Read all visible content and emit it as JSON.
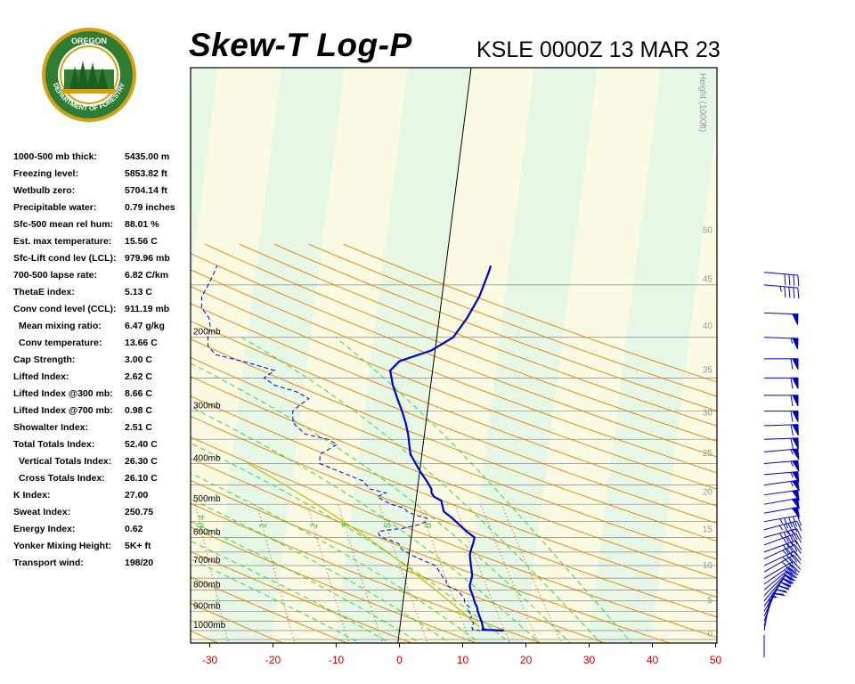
{
  "header": {
    "title": "Skew-T Log-P",
    "station_time": "KSLE 0000Z 13 MAR 23"
  },
  "logo": {
    "top_text": "OREGON",
    "ring_text": "DEPARTMENT OF FORESTRY",
    "colors": {
      "ring": "#2e7d32",
      "outer": "#d4a017",
      "trees": "#1b5e20",
      "sky": "#ffffff"
    }
  },
  "stats": [
    {
      "label": "1000-500 mb thick:",
      "value": "5435.00 m",
      "indent": false
    },
    {
      "label": "Freezing level:",
      "value": "5853.82 ft",
      "indent": false
    },
    {
      "label": "Wetbulb zero:",
      "value": "5704.14 ft",
      "indent": false
    },
    {
      "label": "Precipitable water:",
      "value": "0.79 inches",
      "indent": false
    },
    {
      "label": "Sfc-500 mean rel hum:",
      "value": "88.01 %",
      "indent": false
    },
    {
      "label": "Est. max temperature:",
      "value": "15.56 C",
      "indent": false
    },
    {
      "label": "Sfc-Lift cond lev (LCL):",
      "value": "979.96 mb",
      "indent": false
    },
    {
      "label": "700-500 lapse rate:",
      "value": "6.82 C/km",
      "indent": false
    },
    {
      "label": "ThetaE index:",
      "value": "5.13 C",
      "indent": false
    },
    {
      "label": "Conv cond level (CCL):",
      "value": "911.19 mb",
      "indent": false
    },
    {
      "label": "Mean mixing ratio:",
      "value": "6.47 g/kg",
      "indent": true
    },
    {
      "label": "Conv temperature:",
      "value": "13.66 C",
      "indent": true
    },
    {
      "label": "Cap Strength:",
      "value": "3.00 C",
      "indent": false
    },
    {
      "label": "Lifted Index:",
      "value": "2.62 C",
      "indent": false
    },
    {
      "label": "Lifted Index @300 mb:",
      "value": "8.66 C",
      "indent": false
    },
    {
      "label": "Lifted Index @700 mb:",
      "value": "0.98 C",
      "indent": false
    },
    {
      "label": "Showalter Index:",
      "value": "2.51 C",
      "indent": false
    },
    {
      "label": "Total Totals Index:",
      "value": "52.40 C",
      "indent": false
    },
    {
      "label": "Vertical Totals Index:",
      "value": "26.30 C",
      "indent": true
    },
    {
      "label": "Cross Totals Index:",
      "value": "26.10 C",
      "indent": true
    },
    {
      "label": "K Index:",
      "value": "27.00",
      "indent": false
    },
    {
      "label": "Sweat Index:",
      "value": "250.75",
      "indent": false
    },
    {
      "label": "Energy Index:",
      "value": "0.62",
      "indent": false
    },
    {
      "label": "Yonker Mixing Height:",
      "value": "5K+ ft",
      "indent": false
    },
    {
      "label": "Transport wind:",
      "value": "198/20",
      "indent": false
    }
  ],
  "chart_data": {
    "type": "line",
    "title": "Skew-T Log-P",
    "subtitle": "KSLE 0000Z 13 MAR 23",
    "x_axis": {
      "unit": "C",
      "range": [
        -30,
        50
      ],
      "ticks": [
        -30,
        -20,
        -10,
        0,
        10,
        20,
        30,
        40,
        50
      ]
    },
    "y_axis": {
      "scale": "log-pressure",
      "pressure_labels": [
        "200mb",
        "300mb",
        "400mb",
        "500mb",
        "600mb",
        "700mb",
        "800mb",
        "900mb",
        "1000mb"
      ],
      "pressure_values": [
        200,
        300,
        400,
        500,
        600,
        700,
        800,
        900,
        1000
      ],
      "height_label": "Height (1000ft)",
      "height_ticks": [
        "0",
        "5",
        "10",
        "15",
        "20",
        "25",
        "30",
        "35",
        "40",
        "45",
        "50"
      ]
    },
    "mixing_ratio_labels": [
      "0.4",
      "1",
      "2",
      "3",
      "5",
      "8"
    ],
    "series": [
      {
        "role": "temperature",
        "color": "#0000cc",
        "style": "solid",
        "points": [
          [
            1000,
            16.5
          ],
          [
            995,
            13.0
          ],
          [
            990,
            13.3
          ],
          [
            980,
            13.1
          ],
          [
            960,
            12.9
          ],
          [
            940,
            12.6
          ],
          [
            920,
            12.3
          ],
          [
            900,
            12.0
          ],
          [
            880,
            11.8
          ],
          [
            860,
            11.4
          ],
          [
            840,
            11.1
          ],
          [
            820,
            10.8
          ],
          [
            800,
            10.4
          ],
          [
            780,
            10.2
          ],
          [
            760,
            10.3
          ],
          [
            740,
            10.4
          ],
          [
            720,
            10.2
          ],
          [
            700,
            10.0
          ],
          [
            680,
            9.8
          ],
          [
            660,
            9.6
          ],
          [
            640,
            9.7
          ],
          [
            620,
            9.9
          ],
          [
            600,
            10.0
          ],
          [
            580,
            8.6
          ],
          [
            560,
            7.4
          ],
          [
            540,
            6.1
          ],
          [
            520,
            4.6
          ],
          [
            500,
            4.2
          ],
          [
            490,
            4.0
          ],
          [
            480,
            2.8
          ],
          [
            470,
            2.3
          ],
          [
            460,
            2.2
          ],
          [
            440,
            1.3
          ],
          [
            420,
            0.2
          ],
          [
            400,
            -0.8
          ],
          [
            380,
            -1.8
          ],
          [
            360,
            -2.2
          ],
          [
            340,
            -2.6
          ],
          [
            320,
            -3.2
          ],
          [
            300,
            -4.0
          ],
          [
            280,
            -5.0
          ],
          [
            260,
            -6.0
          ],
          [
            240,
            -6.7
          ],
          [
            228,
            -5.4
          ],
          [
            215,
            -0.6
          ],
          [
            200,
            2.6
          ],
          [
            180,
            4.4
          ],
          [
            160,
            5.9
          ],
          [
            140,
            6.9
          ],
          [
            135,
            7.1
          ]
        ]
      },
      {
        "role": "dewpoint",
        "color": "#0000cc",
        "style": "dashed",
        "points": [
          [
            1000,
            12.8
          ],
          [
            995,
            11.5
          ],
          [
            990,
            11.6
          ],
          [
            980,
            11.3
          ],
          [
            960,
            11.6
          ],
          [
            940,
            10.9
          ],
          [
            920,
            11.2
          ],
          [
            900,
            10.5
          ],
          [
            880,
            10.6
          ],
          [
            860,
            9.8
          ],
          [
            840,
            9.6
          ],
          [
            820,
            9.0
          ],
          [
            800,
            8.2
          ],
          [
            780,
            6.5
          ],
          [
            760,
            6.4
          ],
          [
            740,
            5.6
          ],
          [
            720,
            5.0
          ],
          [
            700,
            4.4
          ],
          [
            680,
            2.3
          ],
          [
            660,
            0.3
          ],
          [
            640,
            -1.3
          ],
          [
            620,
            -1.9
          ],
          [
            600,
            -4.7
          ],
          [
            590,
            -5.2
          ],
          [
            580,
            -5.3
          ],
          [
            570,
            -1.4
          ],
          [
            560,
            0.8
          ],
          [
            550,
            2.1
          ],
          [
            540,
            2.1
          ],
          [
            530,
            0.1
          ],
          [
            520,
            -1.2
          ],
          [
            510,
            -1.8
          ],
          [
            500,
            -3.9
          ],
          [
            480,
            -6.2
          ],
          [
            470,
            -4.9
          ],
          [
            460,
            -7.5
          ],
          [
            440,
            -8.8
          ],
          [
            420,
            -12.3
          ],
          [
            400,
            -16.0
          ],
          [
            380,
            -16.1
          ],
          [
            360,
            -13.6
          ],
          [
            350,
            -15.2
          ],
          [
            340,
            -18.9
          ],
          [
            320,
            -21.0
          ],
          [
            300,
            -21.3
          ],
          [
            290,
            -20.3
          ],
          [
            280,
            -19.0
          ],
          [
            270,
            -21.0
          ],
          [
            260,
            -24.7
          ],
          [
            250,
            -26.5
          ],
          [
            240,
            -25.0
          ],
          [
            230,
            -29.3
          ],
          [
            220,
            -34.6
          ],
          [
            210,
            -36.0
          ],
          [
            200,
            -36.2
          ],
          [
            190,
            -36.0
          ],
          [
            180,
            -36.4
          ],
          [
            170,
            -37.8
          ],
          [
            160,
            -38.0
          ],
          [
            150,
            -37.2
          ],
          [
            140,
            -36.5
          ],
          [
            135,
            -36.2
          ]
        ]
      },
      {
        "role": "parcel",
        "color": "#bfbf00",
        "style": "solid",
        "points": [
          [
            980,
            12.6
          ],
          [
            950,
            11.4
          ],
          [
            900,
            9.4
          ],
          [
            850,
            7.2
          ],
          [
            800,
            4.9
          ],
          [
            750,
            2.3
          ],
          [
            700,
            -0.4
          ],
          [
            650,
            -3.5
          ],
          [
            600,
            -7.0
          ],
          [
            550,
            -11.0
          ],
          [
            500,
            -15.6
          ],
          [
            450,
            -21.0
          ],
          [
            400,
            -27.3
          ]
        ]
      }
    ],
    "winds": [
      {
        "p": 1000,
        "dir": 190,
        "spd": 5
      },
      {
        "p": 975,
        "dir": 195,
        "spd": 15
      },
      {
        "p": 950,
        "dir": 200,
        "spd": 20
      },
      {
        "p": 925,
        "dir": 205,
        "spd": 25
      },
      {
        "p": 900,
        "dir": 210,
        "spd": 25
      },
      {
        "p": 875,
        "dir": 215,
        "spd": 25
      },
      {
        "p": 850,
        "dir": 220,
        "spd": 30
      },
      {
        "p": 825,
        "dir": 225,
        "spd": 30
      },
      {
        "p": 800,
        "dir": 230,
        "spd": 30
      },
      {
        "p": 775,
        "dir": 235,
        "spd": 30
      },
      {
        "p": 750,
        "dir": 240,
        "spd": 30
      },
      {
        "p": 725,
        "dir": 240,
        "spd": 35
      },
      {
        "p": 700,
        "dir": 245,
        "spd": 35
      },
      {
        "p": 675,
        "dir": 245,
        "spd": 35
      },
      {
        "p": 650,
        "dir": 250,
        "spd": 40
      },
      {
        "p": 625,
        "dir": 250,
        "spd": 40
      },
      {
        "p": 600,
        "dir": 255,
        "spd": 45
      },
      {
        "p": 575,
        "dir": 255,
        "spd": 45
      },
      {
        "p": 550,
        "dir": 260,
        "spd": 45
      },
      {
        "p": 525,
        "dir": 260,
        "spd": 50
      },
      {
        "p": 500,
        "dir": 260,
        "spd": 50
      },
      {
        "p": 475,
        "dir": 262,
        "spd": 50
      },
      {
        "p": 450,
        "dir": 262,
        "spd": 55
      },
      {
        "p": 425,
        "dir": 265,
        "spd": 55
      },
      {
        "p": 400,
        "dir": 265,
        "spd": 55
      },
      {
        "p": 375,
        "dir": 265,
        "spd": 55
      },
      {
        "p": 350,
        "dir": 268,
        "spd": 60
      },
      {
        "p": 325,
        "dir": 268,
        "spd": 60
      },
      {
        "p": 300,
        "dir": 270,
        "spd": 60
      },
      {
        "p": 275,
        "dir": 270,
        "spd": 60
      },
      {
        "p": 250,
        "dir": 270,
        "spd": 60
      },
      {
        "p": 225,
        "dir": 270,
        "spd": 60
      },
      {
        "p": 200,
        "dir": 272,
        "spd": 55
      },
      {
        "p": 175,
        "dir": 272,
        "spd": 50
      },
      {
        "p": 150,
        "dir": 275,
        "spd": 45
      },
      {
        "p": 140,
        "dir": 275,
        "spd": 40
      }
    ],
    "colors": {
      "dry_adiabat": "#e08000",
      "moist_adiabat": "#33cc33",
      "mixing_ratio": "#cc3300",
      "isobar": "#888888",
      "zero_isotherm": "#000000",
      "band_green": "#e6f7e6",
      "band_yellow": "#fbfbe4",
      "x_tick": "#cc0000",
      "trace": "#0000cc"
    }
  }
}
